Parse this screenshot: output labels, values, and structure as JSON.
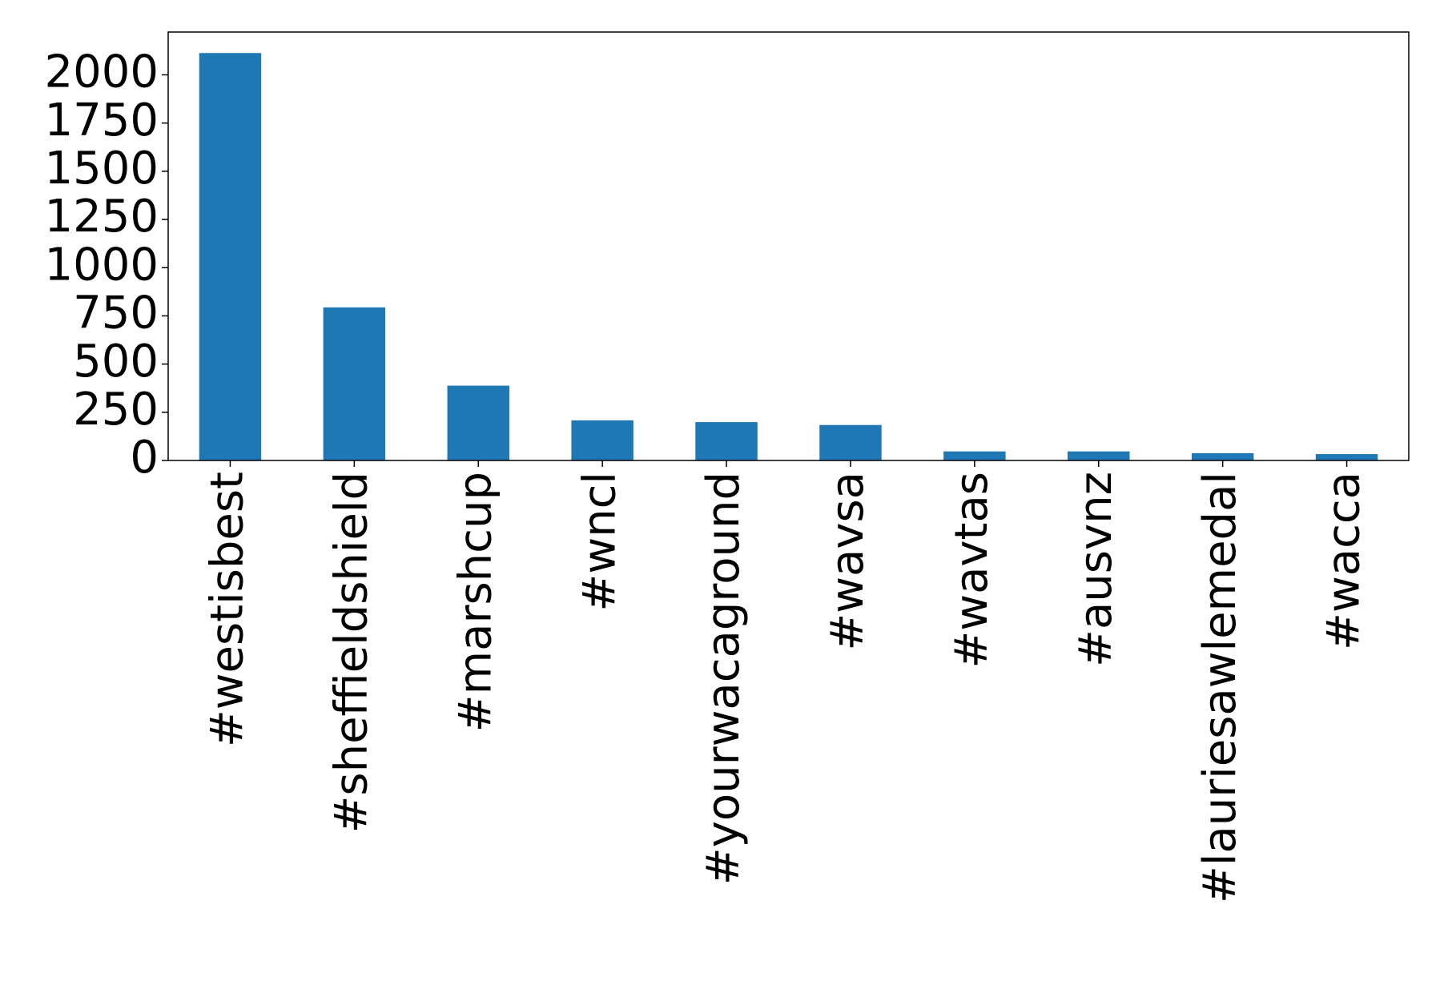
{
  "chart_data": {
    "type": "bar",
    "categories": [
      "#westisbest",
      "#sheffieldshield",
      "#marshcup",
      "#wncl",
      "#yourwacaground",
      "#wavsa",
      "#wavtas",
      "#ausvnz",
      "#lauriesawlemedal",
      "#wacca"
    ],
    "values": [
      2113,
      794,
      388,
      208,
      199,
      184,
      47,
      47,
      38,
      33
    ],
    "color": "#1f77b4",
    "ylim": [
      0,
      2222
    ],
    "yticks": [
      0,
      250,
      500,
      750,
      1000,
      1250,
      1500,
      1750,
      2000
    ],
    "grid": false
  }
}
